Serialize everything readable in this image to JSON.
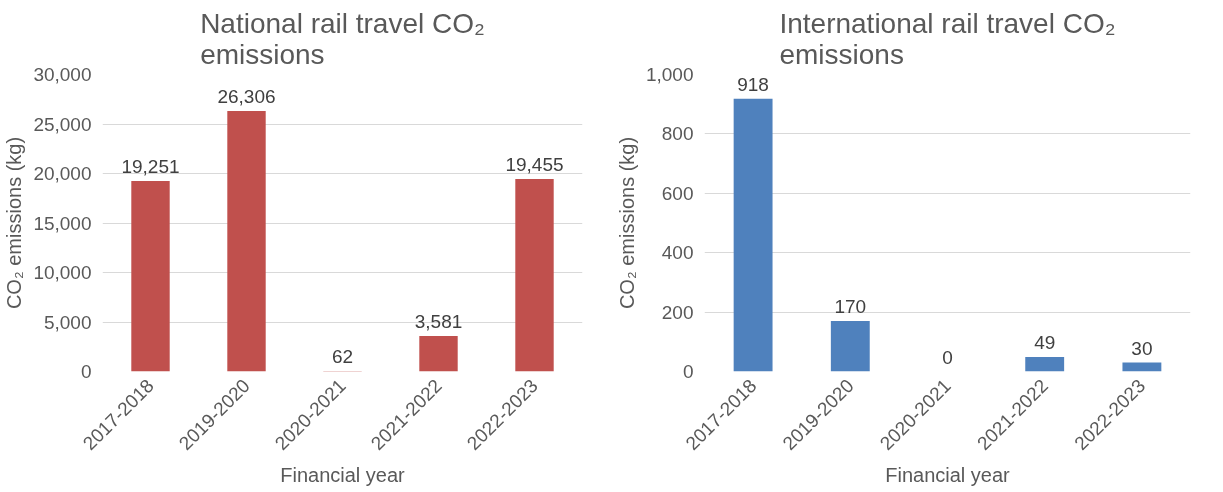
{
  "chart_data": [
    {
      "type": "bar",
      "title": "National rail travel CO₂ emissions",
      "xlabel": "Financial year",
      "ylabel": "CO₂ emissions (kg)",
      "categories": [
        "2017-2018",
        "2019-2020",
        "2020-2021",
        "2021-2022",
        "2022-2023"
      ],
      "values": [
        19251,
        26306,
        62,
        3581,
        19455
      ],
      "value_labels": [
        "19,251",
        "26,306",
        "62",
        "3,581",
        "19,455"
      ],
      "color": "#c0504d",
      "ylim": [
        0,
        30000
      ],
      "yticks": [
        0,
        {
          "value": 5000,
          "label": "5,000"
        },
        {
          "value": 10000,
          "label": "10,000"
        },
        {
          "value": 15000,
          "label": "15,000"
        },
        {
          "value": 20000,
          "label": "20,000"
        },
        {
          "value": 25000,
          "label": "25,000"
        },
        {
          "value": 30000,
          "label": "30,000"
        }
      ],
      "grid": "y"
    },
    {
      "type": "bar",
      "title": "International rail travel CO₂ emissions",
      "xlabel": "Financial year",
      "ylabel": "CO₂ emissions (kg)",
      "categories": [
        "2017-2018",
        "2019-2020",
        "2020-2021",
        "2021-2022",
        "2022-2023"
      ],
      "values": [
        918,
        170,
        0,
        49,
        30
      ],
      "value_labels": [
        "918",
        "170",
        "0",
        "49",
        "30"
      ],
      "color": "#4f81bd",
      "ylim": [
        0,
        1000
      ],
      "yticks": [
        0,
        200,
        400,
        600,
        800,
        {
          "value": 1000,
          "label": "1,000"
        }
      ],
      "grid": "y"
    }
  ]
}
